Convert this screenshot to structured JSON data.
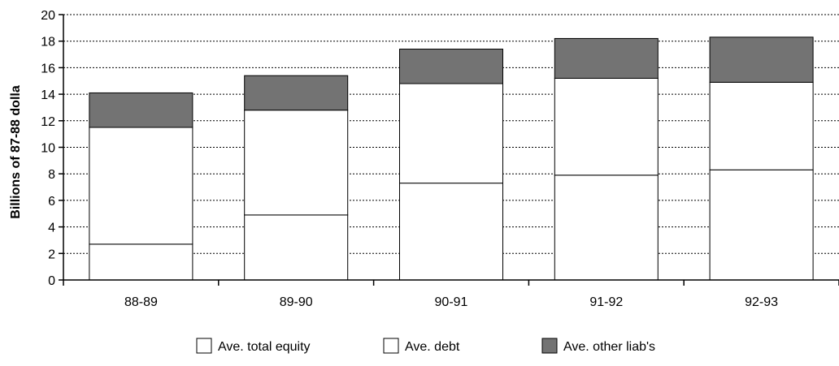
{
  "chart_data": {
    "type": "bar",
    "stacked": true,
    "categories": [
      "88-89",
      "89-90",
      "90-91",
      "91-92",
      "92-93"
    ],
    "series": [
      {
        "name": "Ave. total equity",
        "values": [
          2.7,
          4.9,
          7.3,
          7.9,
          8.3
        ],
        "color": "#ffffff"
      },
      {
        "name": "Ave. debt",
        "values": [
          8.8,
          7.9,
          7.5,
          7.3,
          6.6
        ],
        "color": "#ffffff"
      },
      {
        "name": "Ave. other liab's",
        "values": [
          2.6,
          2.6,
          2.6,
          3.0,
          3.4
        ],
        "color": "#737373"
      }
    ],
    "title": "",
    "xlabel": "",
    "ylabel": "Billions of 87-88 dolla",
    "ylim": [
      0,
      20
    ],
    "yticks": [
      0,
      2,
      4,
      6,
      8,
      10,
      12,
      14,
      16,
      18,
      20
    ],
    "grid": true,
    "legend_position": "bottom"
  }
}
